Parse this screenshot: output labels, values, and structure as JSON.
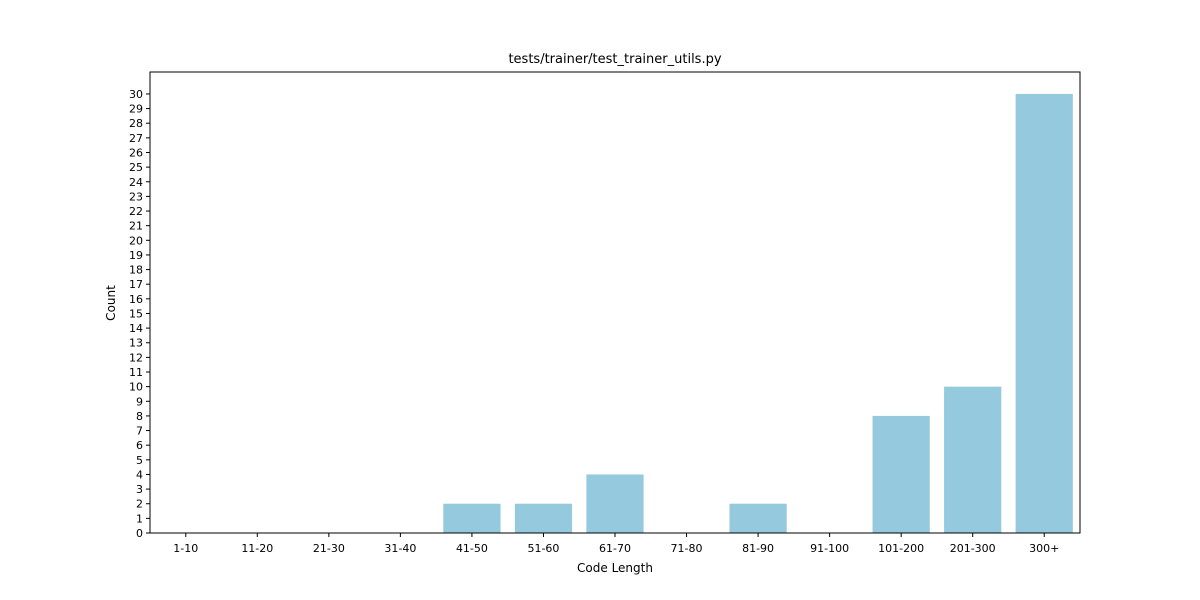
{
  "chart_data": {
    "type": "bar",
    "title": "tests/trainer/test_trainer_utils.py",
    "xlabel": "Code Length",
    "ylabel": "Count",
    "categories": [
      "1-10",
      "11-20",
      "21-30",
      "31-40",
      "41-50",
      "51-60",
      "61-70",
      "71-80",
      "81-90",
      "91-100",
      "101-200",
      "201-300",
      "300+"
    ],
    "values": [
      0,
      0,
      0,
      0,
      2,
      2,
      4,
      0,
      2,
      0,
      8,
      10,
      30
    ],
    "ylim": [
      0,
      31.5
    ],
    "yticks": [
      0,
      1,
      2,
      3,
      4,
      5,
      6,
      7,
      8,
      9,
      10,
      11,
      12,
      13,
      14,
      15,
      16,
      17,
      18,
      19,
      20,
      21,
      22,
      23,
      24,
      25,
      26,
      27,
      28,
      29,
      30
    ],
    "bar_color": "#95cade",
    "grid": false,
    "legend": "none"
  }
}
